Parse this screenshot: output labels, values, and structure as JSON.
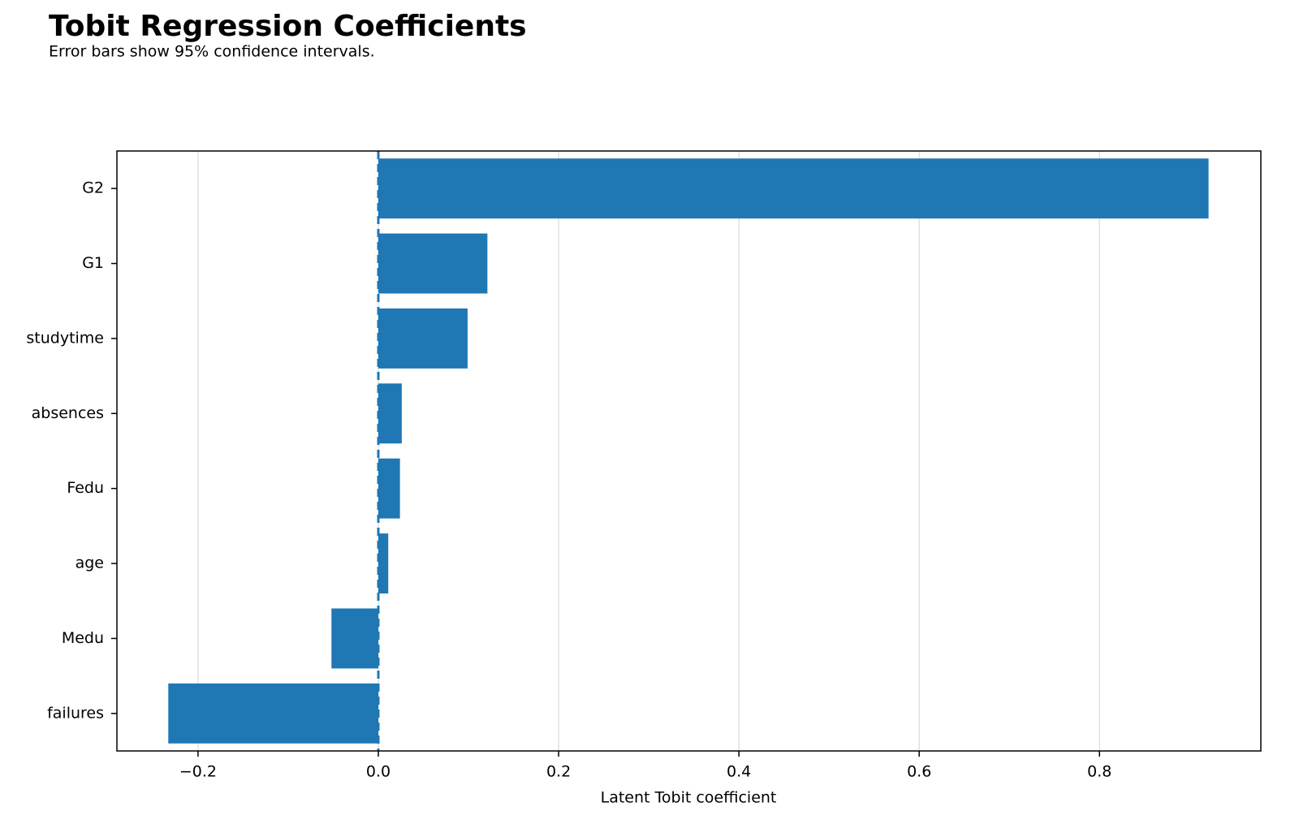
{
  "chart_data": {
    "type": "barh",
    "title": "Tobit Regression Coefficients",
    "subtitle": "Error bars show 95% confidence intervals.",
    "xlabel": "Latent Tobit coefficient",
    "categories": [
      "G2",
      "G1",
      "studytime",
      "absences",
      "Fedu",
      "age",
      "Medu",
      "failures"
    ],
    "values": [
      0.921,
      0.121,
      0.099,
      0.026,
      0.024,
      0.011,
      -0.052,
      -0.233
    ],
    "color": "#1f77b4",
    "xlim": [
      -0.29,
      0.979
    ],
    "xticks": [
      {
        "value": -0.2,
        "label": "−0.2"
      },
      {
        "value": 0,
        "label": "0.0"
      },
      0.2,
      0.4,
      0.6,
      0.8
    ],
    "grid": true
  }
}
